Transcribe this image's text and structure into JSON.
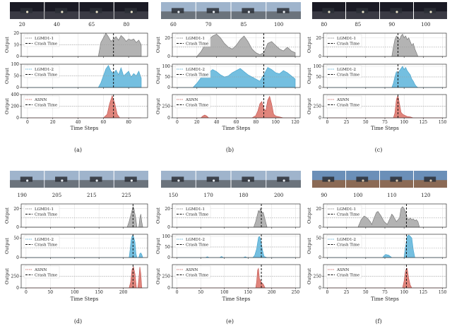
{
  "colors": {
    "lgmd1_fill": "#b3b3b3",
    "lgmd1_line": "#6f6f6f",
    "lgmd2_fill": "#74bfe0",
    "lgmd2_line": "#3f9fc9",
    "asnn_fill": "#e0857c",
    "asnn_line": "#c0504d",
    "crash": "#111111",
    "threshold": "#9a9a9a",
    "grid": "#dddddd"
  },
  "legend_labels": {
    "lgmd1": "LGMD1-1",
    "lgmd2": "LGMD1-2",
    "asnn": "ASNN",
    "crash": "Crash Time"
  },
  "ylabel": "Output",
  "xlabel": "Time Steps",
  "chart_data": [
    {
      "type": "area",
      "caption": "(a)",
      "frame_labels": [
        "20",
        "40",
        "65",
        "80"
      ],
      "frame_tone": "night",
      "xlim": [
        -5,
        95
      ],
      "xticks": [
        0,
        20,
        40,
        60,
        80
      ],
      "crash_x": 68,
      "panels": [
        {
          "series": "LGMD1-1",
          "ylim": [
            0,
            20
          ],
          "yticks": [
            0,
            10,
            20
          ],
          "threshold": 10,
          "x": [
            0,
            56,
            58,
            60,
            62,
            64,
            66,
            68,
            70,
            72,
            74,
            76,
            78,
            80,
            82,
            84,
            86,
            88,
            90
          ],
          "values": [
            0,
            0,
            12,
            16,
            20,
            17,
            13,
            15,
            17,
            14,
            18,
            16,
            13,
            15,
            14,
            15,
            12,
            14,
            10
          ]
        },
        {
          "series": "LGMD1-2",
          "ylim": [
            0,
            100
          ],
          "yticks": [
            0,
            50,
            100
          ],
          "threshold": 50,
          "x": [
            0,
            56,
            58,
            60,
            62,
            64,
            66,
            68,
            70,
            72,
            74,
            76,
            78,
            80,
            82,
            84,
            86,
            88,
            90
          ],
          "values": [
            0,
            0,
            20,
            50,
            80,
            95,
            70,
            60,
            75,
            55,
            85,
            50,
            60,
            70,
            45,
            60,
            50,
            70,
            40
          ]
        },
        {
          "series": "ASNN",
          "ylim": [
            0,
            400
          ],
          "yticks": [
            0,
            200,
            400
          ],
          "threshold": 200,
          "x": [
            0,
            60,
            63,
            65,
            67,
            69,
            71,
            73,
            90
          ],
          "values": [
            0,
            0,
            60,
            250,
            380,
            250,
            60,
            0,
            0
          ]
        }
      ]
    },
    {
      "type": "area",
      "caption": "(b)",
      "frame_labels": [
        "60",
        "70",
        "85",
        "100"
      ],
      "frame_tone": "day",
      "xlim": [
        -5,
        125
      ],
      "xticks": [
        0,
        20,
        40,
        60,
        80,
        100,
        120
      ],
      "crash_x": 88,
      "panels": [
        {
          "series": "LGMD1-1",
          "ylim": [
            0,
            25
          ],
          "yticks": [
            0,
            20
          ],
          "threshold": 10,
          "x": [
            0,
            20,
            24,
            28,
            32,
            36,
            40,
            44,
            48,
            52,
            56,
            60,
            64,
            68,
            72,
            76,
            80,
            84,
            88,
            92,
            96,
            100,
            104,
            108,
            112,
            116,
            120
          ],
          "values": [
            0,
            0,
            5,
            12,
            18,
            22,
            24,
            20,
            14,
            10,
            8,
            12,
            18,
            22,
            16,
            8,
            4,
            2,
            4,
            14,
            16,
            12,
            8,
            6,
            10,
            6,
            4
          ]
        },
        {
          "series": "LGMD1-2",
          "ylim": [
            0,
            110
          ],
          "yticks": [
            0,
            50,
            100
          ],
          "threshold": 50,
          "x": [
            0,
            16,
            20,
            24,
            28,
            32,
            36,
            40,
            44,
            48,
            52,
            56,
            60,
            64,
            68,
            72,
            76,
            80,
            84,
            88,
            92,
            96,
            100,
            104,
            108,
            112,
            116,
            120
          ],
          "values": [
            0,
            0,
            20,
            45,
            60,
            70,
            85,
            75,
            60,
            50,
            55,
            70,
            80,
            90,
            75,
            60,
            50,
            40,
            30,
            60,
            95,
            85,
            70,
            65,
            80,
            70,
            55,
            40
          ]
        },
        {
          "series": "ASNN",
          "ylim": [
            0,
            500
          ],
          "yticks": [
            0,
            250
          ],
          "threshold": 250,
          "x": [
            0,
            24,
            26,
            28,
            30,
            32,
            60,
            76,
            80,
            82,
            84,
            86,
            88,
            90,
            92,
            94,
            96,
            98,
            100,
            104,
            108,
            120
          ],
          "values": [
            0,
            0,
            40,
            60,
            40,
            0,
            0,
            0,
            50,
            150,
            300,
            350,
            200,
            150,
            380,
            460,
            300,
            80,
            40,
            20,
            0,
            0
          ]
        }
      ]
    },
    {
      "type": "area",
      "caption": "(c)",
      "frame_labels": [
        "80",
        "85",
        "90",
        "100"
      ],
      "frame_tone": "night",
      "xlim": [
        -5,
        155
      ],
      "xticks": [
        0,
        25,
        50,
        75,
        100,
        125,
        150
      ],
      "crash_x": 92,
      "panels": [
        {
          "series": "LGMD1-1",
          "ylim": [
            0,
            25
          ],
          "yticks": [
            0,
            20
          ],
          "threshold": 10,
          "x": [
            0,
            84,
            86,
            88,
            90,
            92,
            94,
            96,
            98,
            100,
            102,
            104,
            106,
            108,
            110,
            112,
            114,
            116,
            118,
            150
          ],
          "values": [
            0,
            0,
            10,
            18,
            22,
            20,
            18,
            22,
            24,
            20,
            22,
            18,
            20,
            16,
            12,
            14,
            8,
            4,
            0,
            0
          ]
        },
        {
          "series": "LGMD1-2",
          "ylim": [
            0,
            110
          ],
          "yticks": [
            0,
            50,
            100
          ],
          "threshold": 50,
          "x": [
            0,
            84,
            86,
            88,
            90,
            92,
            94,
            96,
            98,
            100,
            102,
            104,
            106,
            108,
            110,
            112,
            114,
            116,
            118,
            150
          ],
          "values": [
            0,
            0,
            20,
            50,
            75,
            60,
            80,
            90,
            100,
            85,
            95,
            80,
            70,
            60,
            40,
            30,
            15,
            5,
            0,
            0
          ]
        },
        {
          "series": "ASNN",
          "ylim": [
            0,
            500
          ],
          "yticks": [
            0,
            250
          ],
          "threshold": 250,
          "x": [
            0,
            86,
            88,
            90,
            92,
            94,
            96,
            98,
            100,
            104,
            108,
            112,
            150
          ],
          "values": [
            0,
            0,
            100,
            400,
            480,
            300,
            120,
            80,
            60,
            30,
            20,
            0,
            0
          ]
        }
      ]
    },
    {
      "type": "area",
      "caption": "(d)",
      "frame_labels": [
        "190",
        "205",
        "215",
        "225"
      ],
      "frame_tone": "day",
      "xlim": [
        -10,
        250
      ],
      "xticks": [
        0,
        50,
        100,
        150,
        200
      ],
      "crash_x": 220,
      "panels": [
        {
          "series": "LGMD1-1",
          "ylim": [
            0,
            25
          ],
          "yticks": [
            0,
            20
          ],
          "threshold": 10,
          "x": [
            0,
            208,
            212,
            216,
            220,
            222,
            224,
            226,
            228,
            232,
            234,
            236,
            238,
            240
          ],
          "values": [
            0,
            0,
            6,
            14,
            22,
            20,
            14,
            8,
            0,
            0,
            10,
            14,
            6,
            0
          ]
        },
        {
          "series": "LGMD1-2",
          "ylim": [
            0,
            60
          ],
          "yticks": [
            0,
            50
          ],
          "threshold": 25,
          "x": [
            0,
            212,
            214,
            216,
            218,
            220,
            222,
            224,
            226,
            228,
            232,
            234,
            236,
            238,
            240
          ],
          "values": [
            0,
            0,
            20,
            45,
            55,
            58,
            50,
            40,
            10,
            0,
            0,
            10,
            12,
            8,
            0
          ]
        },
        {
          "series": "ASNN",
          "ylim": [
            0,
            500
          ],
          "yticks": [
            0,
            250
          ],
          "threshold": 250,
          "x": [
            0,
            212,
            215,
            218,
            221,
            224,
            227,
            230,
            232,
            234,
            236,
            238,
            240
          ],
          "values": [
            0,
            0,
            120,
            400,
            450,
            300,
            0,
            0,
            200,
            450,
            300,
            0,
            0
          ]
        }
      ]
    },
    {
      "type": "area",
      "caption": "(e)",
      "frame_labels": [
        "150",
        "170",
        "180",
        "200"
      ],
      "frame_tone": "day",
      "xlim": [
        -10,
        260
      ],
      "xticks": [
        0,
        50,
        100,
        150,
        200,
        250
      ],
      "crash_x": 178,
      "panels": [
        {
          "series": "LGMD1-1",
          "ylim": [
            0,
            25
          ],
          "yticks": [
            0,
            20
          ],
          "threshold": 10,
          "x": [
            0,
            162,
            166,
            170,
            172,
            174,
            176,
            178,
            180,
            182,
            184,
            186,
            188,
            190
          ],
          "values": [
            0,
            0,
            6,
            14,
            18,
            16,
            20,
            18,
            15,
            16,
            12,
            8,
            4,
            0
          ]
        },
        {
          "series": "LGMD1-2",
          "ylim": [
            0,
            110
          ],
          "yticks": [
            0,
            50,
            100
          ],
          "threshold": 50,
          "x": [
            0,
            60,
            64,
            68,
            90,
            94,
            98,
            140,
            144,
            148,
            160,
            164,
            168,
            170,
            172,
            174,
            176,
            178,
            180,
            182,
            184,
            190,
            250
          ],
          "values": [
            0,
            0,
            4,
            0,
            0,
            5,
            0,
            0,
            4,
            0,
            0,
            10,
            40,
            70,
            95,
            100,
            90,
            70,
            40,
            20,
            5,
            0,
            0
          ]
        },
        {
          "series": "ASNN",
          "ylim": [
            0,
            500
          ],
          "yticks": [
            0,
            250
          ],
          "threshold": 250,
          "x": [
            0,
            166,
            168,
            170,
            172,
            174,
            176,
            178,
            180,
            182,
            184,
            186,
            250
          ],
          "values": [
            0,
            0,
            120,
            380,
            420,
            200,
            160,
            120,
            100,
            80,
            40,
            0,
            0
          ]
        }
      ]
    },
    {
      "type": "area",
      "caption": "(f)",
      "frame_labels": [
        "90",
        "100",
        "110",
        "120"
      ],
      "frame_tone": "sunset",
      "xlim": [
        -5,
        155
      ],
      "xticks": [
        0,
        25,
        50,
        75,
        100,
        125,
        150
      ],
      "crash_x": 103,
      "panels": [
        {
          "series": "LGMD1-1",
          "ylim": [
            0,
            25
          ],
          "yticks": [
            0,
            20
          ],
          "threshold": 10,
          "x": [
            0,
            40,
            44,
            48,
            52,
            56,
            58,
            60,
            64,
            66,
            70,
            74,
            78,
            82,
            84,
            86,
            90,
            94,
            96,
            98,
            100,
            102,
            104,
            106,
            108,
            110,
            112,
            114,
            116,
            118,
            120,
            150
          ],
          "values": [
            0,
            0,
            8,
            12,
            10,
            6,
            3,
            8,
            16,
            17,
            12,
            6,
            3,
            10,
            14,
            12,
            6,
            10,
            20,
            22,
            20,
            16,
            10,
            8,
            10,
            8,
            9,
            7,
            8,
            6,
            0,
            0
          ]
        },
        {
          "series": "LGMD1-2",
          "ylim": [
            0,
            60
          ],
          "yticks": [
            0,
            50
          ],
          "threshold": 25,
          "x": [
            0,
            72,
            74,
            76,
            80,
            84,
            100,
            102,
            104,
            106,
            108,
            110,
            112,
            114,
            150
          ],
          "values": [
            0,
            0,
            5,
            8,
            6,
            0,
            0,
            30,
            55,
            58,
            55,
            50,
            20,
            0,
            0
          ]
        },
        {
          "series": "ASNN",
          "ylim": [
            0,
            500
          ],
          "yticks": [
            0,
            250
          ],
          "threshold": 250,
          "x": [
            0,
            98,
            100,
            102,
            104,
            106,
            108,
            110,
            150
          ],
          "values": [
            0,
            0,
            150,
            380,
            420,
            200,
            60,
            0,
            0
          ]
        }
      ]
    }
  ]
}
